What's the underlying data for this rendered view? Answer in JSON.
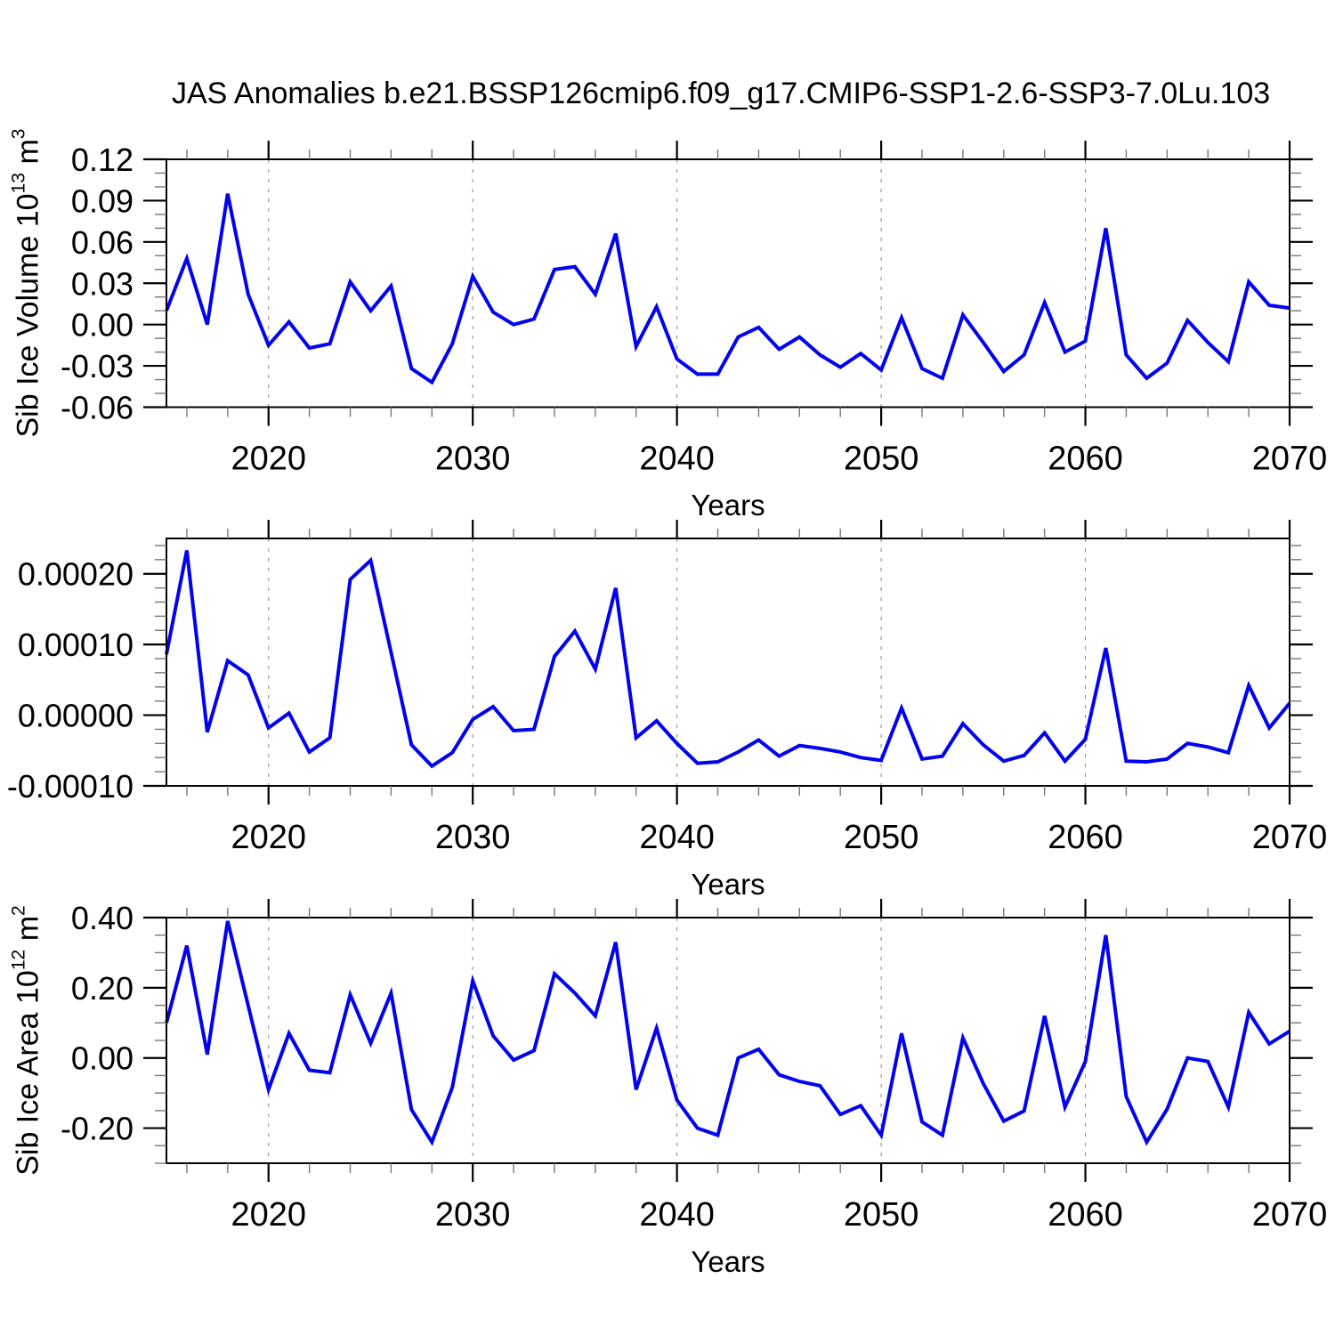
{
  "title": "JAS Anomalies b.e21.BSSP126cmip6.f09_g17.CMIP6-SSP1-2.6-SSP3-7.0Lu.103",
  "colors": {
    "line": "#0202f0",
    "axis": "#000000",
    "grid": "#888888",
    "minor_tick": "#777777",
    "background": "#ffffff"
  },
  "chart_data": [
    {
      "id": "sib-ice-volume",
      "type": "line",
      "ylabel": "Sib Ice Volume 10¹³ m³",
      "ylabel_parts": {
        "text": "Sib Ice Volume 10",
        "sup": "13",
        "unit": " m",
        "unit_sup": "3"
      },
      "xlabel": "Years",
      "ylim": [
        -0.06,
        0.12
      ],
      "ytick_values": [
        0.12,
        0.09,
        0.06,
        0.03,
        0,
        -0.03,
        -0.06
      ],
      "ytick_labels": [
        "0.12",
        "0.09",
        "0.06",
        "0.03",
        "0.00",
        "-0.03",
        "-0.06"
      ],
      "ytick_minor_step": 0.01,
      "xlim": [
        2015,
        2070
      ],
      "xtick_major": [
        2020,
        2030,
        2040,
        2050,
        2060,
        2070
      ],
      "xtick_labels": [
        "2020",
        "2030",
        "2040",
        "2050",
        "2060",
        "2070"
      ],
      "xtick_minor_step": 2,
      "gridline_years": [
        2020,
        2030,
        2040,
        2050,
        2060
      ],
      "grid": "vertical-dashed",
      "legend": "none",
      "years": [
        2015,
        2016,
        2017,
        2018,
        2019,
        2020,
        2021,
        2022,
        2023,
        2024,
        2025,
        2026,
        2027,
        2028,
        2029,
        2030,
        2031,
        2032,
        2033,
        2034,
        2035,
        2036,
        2037,
        2038,
        2039,
        2040,
        2041,
        2042,
        2043,
        2044,
        2045,
        2046,
        2047,
        2048,
        2049,
        2050,
        2051,
        2052,
        2053,
        2054,
        2055,
        2056,
        2057,
        2058,
        2059,
        2060,
        2061,
        2062,
        2063,
        2064,
        2065,
        2066,
        2067,
        2068,
        2069,
        2070
      ],
      "values": [
        0.01,
        0.048,
        0.0,
        0.095,
        0.022,
        -0.015,
        0.002,
        -0.017,
        -0.014,
        0.031,
        0.01,
        0.028,
        -0.032,
        -0.042,
        -0.014,
        0.035,
        0.009,
        0.0,
        0.004,
        0.04,
        0.042,
        0.022,
        0.066,
        -0.016,
        0.013,
        -0.025,
        -0.036,
        -0.036,
        -0.009,
        -0.002,
        -0.018,
        -0.009,
        -0.022,
        -0.031,
        -0.021,
        -0.033,
        0.005,
        -0.032,
        -0.039,
        0.007,
        -0.013,
        -0.034,
        -0.022,
        0.016,
        -0.02,
        -0.012,
        0.07,
        -0.022,
        -0.039,
        -0.028,
        0.003,
        -0.013,
        -0.027,
        0.031,
        0.014,
        0.012
      ]
    },
    {
      "id": "sib-ice-middle-anomaly",
      "type": "line",
      "ylabel": null,
      "ylabel_parts": null,
      "xlabel": "Years",
      "ylim": [
        -0.0001,
        0.00025
      ],
      "ytick_values": [
        0.0002,
        0.0001,
        0,
        -0.0001
      ],
      "ytick_labels": [
        "0.00020",
        "0.00010",
        "0.00000",
        "-0.00010"
      ],
      "ytick_minor_step": 2e-05,
      "xlim": [
        2015,
        2070
      ],
      "xtick_major": [
        2020,
        2030,
        2040,
        2050,
        2060,
        2070
      ],
      "xtick_labels": [
        "2020",
        "2030",
        "2040",
        "2050",
        "2060",
        "2070"
      ],
      "xtick_minor_step": 2,
      "gridline_years": [
        2020,
        2030,
        2040,
        2050,
        2060
      ],
      "grid": "vertical-dashed",
      "legend": "none",
      "years": [
        2015,
        2016,
        2017,
        2018,
        2019,
        2020,
        2021,
        2022,
        2023,
        2024,
        2025,
        2026,
        2027,
        2028,
        2029,
        2030,
        2031,
        2032,
        2033,
        2034,
        2035,
        2036,
        2037,
        2038,
        2039,
        2040,
        2041,
        2042,
        2043,
        2044,
        2045,
        2046,
        2047,
        2048,
        2049,
        2050,
        2051,
        2052,
        2053,
        2054,
        2055,
        2056,
        2057,
        2058,
        2059,
        2060,
        2061,
        2062,
        2063,
        2064,
        2065,
        2066,
        2067,
        2068,
        2069,
        2070
      ],
      "values": [
        8.6e-05,
        0.000233,
        -2.4e-05,
        7.7e-05,
        5.7e-05,
        -1.8e-05,
        3e-06,
        -5.2e-05,
        -3.2e-05,
        0.000192,
        0.000219,
        8.9e-05,
        -4.2e-05,
        -7.2e-05,
        -5.3e-05,
        -6e-06,
        1.2e-05,
        -2.2e-05,
        -2e-05,
        8.3e-05,
        0.000119,
        6.5e-05,
        0.00018,
        -3.2e-05,
        -8e-06,
        -4e-05,
        -6.8e-05,
        -6.6e-05,
        -5.2e-05,
        -3.5e-05,
        -5.8e-05,
        -4.3e-05,
        -4.7e-05,
        -5.2e-05,
        -6e-05,
        -6.4e-05,
        1e-05,
        -6.2e-05,
        -5.8e-05,
        -1.2e-05,
        -4.2e-05,
        -6.5e-05,
        -5.7e-05,
        -2.5e-05,
        -6.5e-05,
        -3.4e-05,
        9.5e-05,
        -6.5e-05,
        -6.6e-05,
        -6.2e-05,
        -4e-05,
        -4.5e-05,
        -5.3e-05,
        4.2e-05,
        -1.8e-05,
        1.7e-05
      ]
    },
    {
      "id": "sib-ice-area",
      "type": "line",
      "ylabel": "Sib Ice Area 10¹² m²",
      "ylabel_parts": {
        "text": "Sib Ice Area 10",
        "sup": "12",
        "unit": " m",
        "unit_sup": "2"
      },
      "xlabel": "Years",
      "ylim": [
        -0.3,
        0.4
      ],
      "ytick_values": [
        0.4,
        0.2,
        0,
        -0.2
      ],
      "ytick_labels": [
        "0.40",
        "0.20",
        "0.00",
        "-0.20"
      ],
      "ytick_minor_step": 0.05,
      "xlim": [
        2015,
        2070
      ],
      "xtick_major": [
        2020,
        2030,
        2040,
        2050,
        2060,
        2070
      ],
      "xtick_labels": [
        "2020",
        "2030",
        "2040",
        "2050",
        "2060",
        "2070"
      ],
      "xtick_minor_step": 2,
      "gridline_years": [
        2020,
        2030,
        2040,
        2050,
        2060
      ],
      "grid": "vertical-dashed",
      "legend": "none",
      "years": [
        2015,
        2016,
        2017,
        2018,
        2019,
        2020,
        2021,
        2022,
        2023,
        2024,
        2025,
        2026,
        2027,
        2028,
        2029,
        2030,
        2031,
        2032,
        2033,
        2034,
        2035,
        2036,
        2037,
        2038,
        2039,
        2040,
        2041,
        2042,
        2043,
        2044,
        2045,
        2046,
        2047,
        2048,
        2049,
        2050,
        2051,
        2052,
        2053,
        2054,
        2055,
        2056,
        2057,
        2058,
        2059,
        2060,
        2061,
        2062,
        2063,
        2064,
        2065,
        2066,
        2067,
        2068,
        2069,
        2070
      ],
      "values": [
        0.1,
        0.32,
        0.01,
        0.39,
        0.15,
        -0.09,
        0.07,
        -0.035,
        -0.042,
        0.18,
        0.042,
        0.185,
        -0.147,
        -0.24,
        -0.084,
        0.22,
        0.063,
        -0.006,
        0.021,
        0.24,
        0.185,
        0.12,
        0.33,
        -0.09,
        0.085,
        -0.12,
        -0.2,
        -0.22,
        0.0,
        0.025,
        -0.048,
        -0.067,
        -0.079,
        -0.161,
        -0.136,
        -0.22,
        0.07,
        -0.182,
        -0.22,
        0.057,
        -0.073,
        -0.18,
        -0.151,
        0.12,
        -0.14,
        -0.01,
        0.35,
        -0.11,
        -0.24,
        -0.146,
        0.0,
        -0.01,
        -0.14,
        0.13,
        0.04,
        0.076
      ]
    }
  ]
}
